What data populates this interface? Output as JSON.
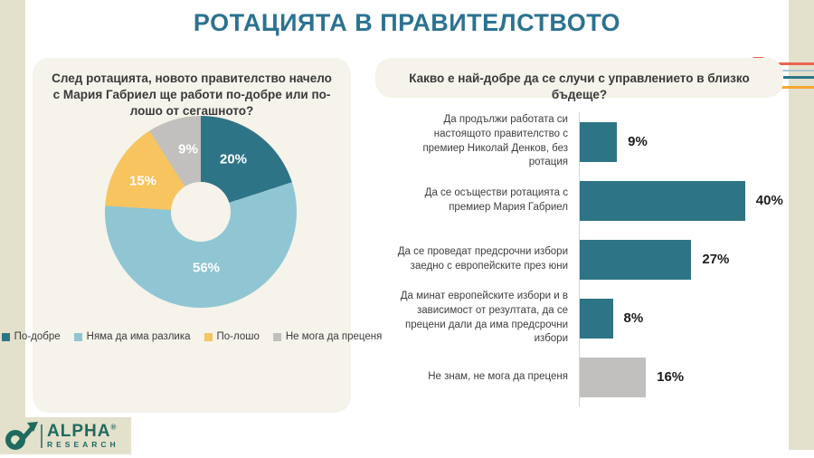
{
  "page": {
    "title": "РОТАЦИЯТА В ПРАВИТЕЛСТВОТО"
  },
  "logo": {
    "brand": "ALPHA",
    "registered": "®",
    "subbrand": "RESEARCH"
  },
  "colors": {
    "title_teal": "#2C7291",
    "panel_background": "#F5F3EA",
    "edge_strip": "#E3E0CC",
    "teal": "#2E7487",
    "light_blue": "#90C6D3",
    "yellow": "#F7C45F",
    "gray": "#C1C0BE",
    "logo_teal": "#1F6A5F"
  },
  "chart_data": [
    {
      "type": "pie",
      "subtype": "donut",
      "title": "След ротацията, новото правителство начело с Мария Габриел ще работи по-добре или по-лошо от сегашното?",
      "labels": [
        "По-добре",
        "Няма да има разлика",
        "По-лошо",
        "Не мога да преценя"
      ],
      "values": [
        20,
        56,
        15,
        9
      ],
      "unit": "%",
      "colors": [
        "#2E7487",
        "#90C6D3",
        "#F7C45F",
        "#C1C0BE"
      ],
      "start_angle": "top",
      "direction": "clockwise",
      "legend_position": "bottom"
    },
    {
      "type": "bar",
      "orientation": "horizontal",
      "title": "Какво е най-добре да се случи с управлението в близко бъдеще?",
      "categories": [
        "Да продължи работата си настоящото правителство с премиер Николай Денков, без ротация",
        "Да се осъществи ротацията с премиер Мария Габриел",
        "Да се проведат предсрочни избори заедно с европейските през юни",
        "Да минат европейските избори и в зависимост от резултата, да се прецени дали да има предсрочни избори",
        "Не знам, не мога да преценя"
      ],
      "values": [
        9,
        40,
        27,
        8,
        16
      ],
      "unit": "%",
      "colors": [
        "#2E7487",
        "#2E7487",
        "#2E7487",
        "#2E7487",
        "#C1C0BE"
      ],
      "xlim": [
        0,
        44
      ],
      "value_labels": "outside-end",
      "grid": false
    }
  ]
}
